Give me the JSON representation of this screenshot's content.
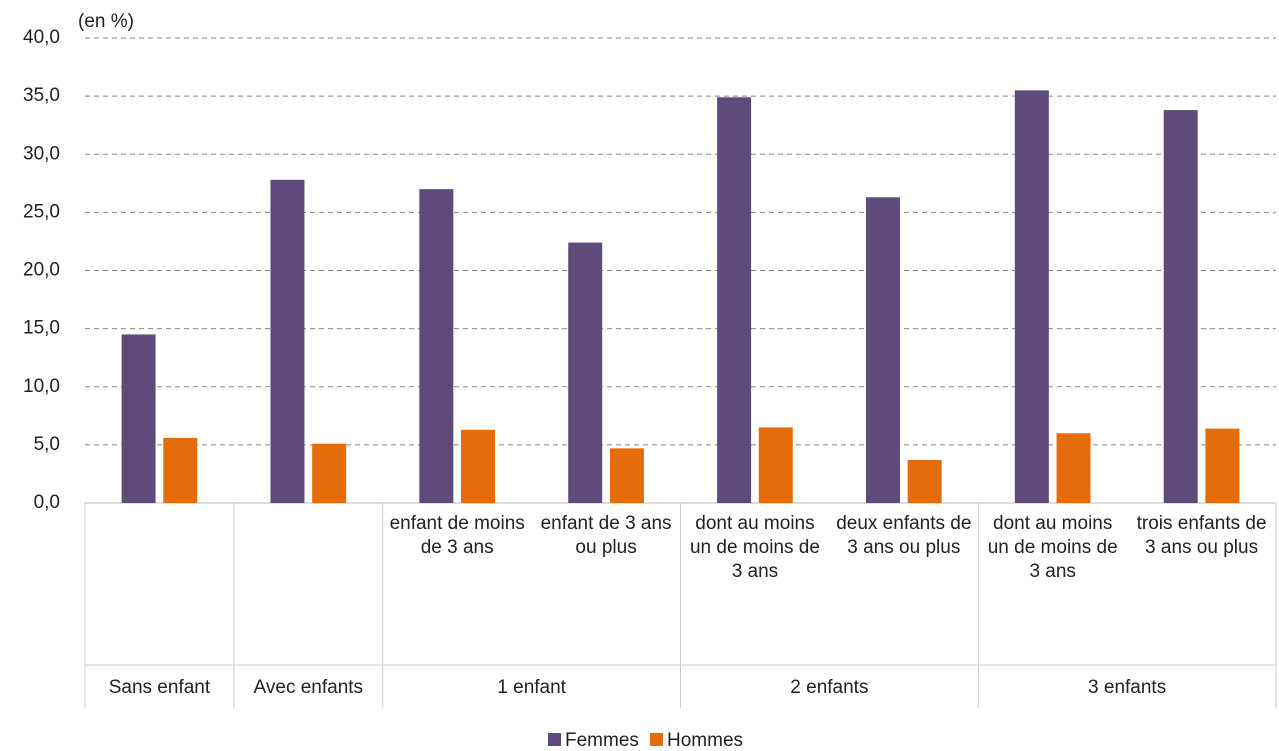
{
  "chart_data": {
    "type": "bar",
    "y_axis_label": "(en %)",
    "groups": [
      {
        "name": "Sans enfant",
        "categories": [
          null
        ]
      },
      {
        "name": "Avec enfants",
        "categories": [
          null
        ]
      },
      {
        "name": "1 enfant",
        "categories": [
          "enfant de moins de 3 ans",
          "enfant de 3 ans ou plus"
        ]
      },
      {
        "name": "2 enfants",
        "categories": [
          "dont au moins un de moins de 3 ans",
          "deux enfants de 3 ans ou plus"
        ]
      },
      {
        "name": "3 enfants",
        "categories": [
          "dont au moins un de moins de 3 ans",
          "trois enfants de 3 ans ou plus"
        ]
      }
    ],
    "series": [
      {
        "name": "Femmes",
        "color": "#5f4b7b",
        "values": [
          14.5,
          27.8,
          27.0,
          22.4,
          34.9,
          26.3,
          35.5,
          33.8
        ]
      },
      {
        "name": "Hommes",
        "color": "#e46c0a",
        "values": [
          5.6,
          5.1,
          6.3,
          4.7,
          6.5,
          3.7,
          6.0,
          6.4
        ]
      }
    ],
    "ylim": [
      0,
      40
    ],
    "yticks": [
      {
        "value": 0,
        "label": "0,0"
      },
      {
        "value": 5,
        "label": "5,0"
      },
      {
        "value": 10,
        "label": "10,0"
      },
      {
        "value": 15,
        "label": "15,0"
      },
      {
        "value": 20,
        "label": "20,0"
      },
      {
        "value": 25,
        "label": "25,0"
      },
      {
        "value": 30,
        "label": "30,0"
      },
      {
        "value": 35,
        "label": "35,0"
      },
      {
        "value": 40,
        "label": "40,0"
      }
    ],
    "grid": true,
    "legend": "bottom"
  }
}
